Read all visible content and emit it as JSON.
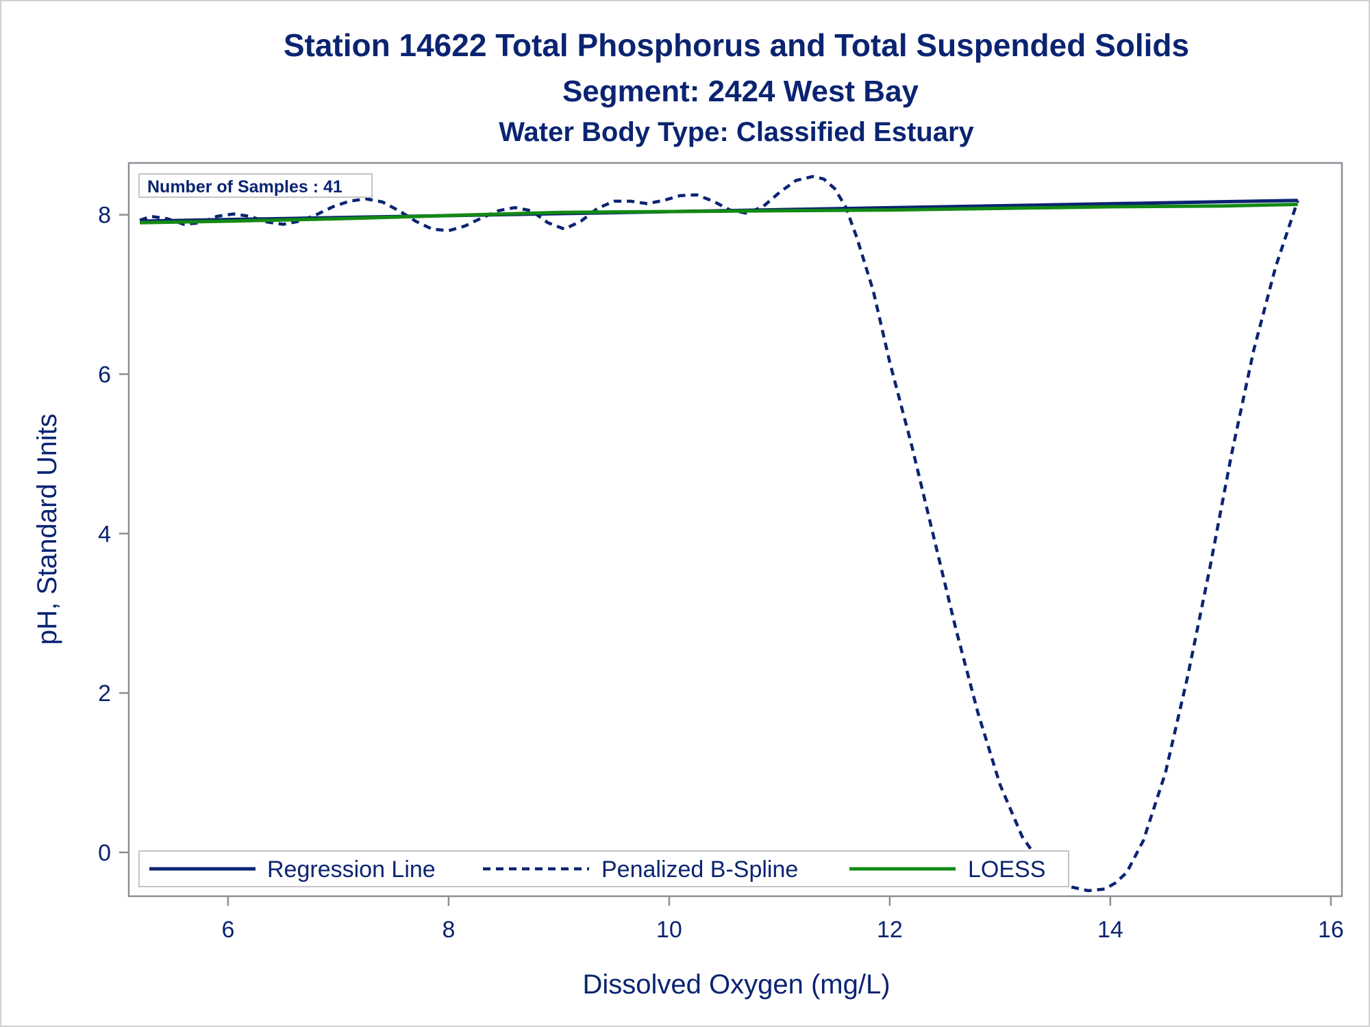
{
  "chart_data": {
    "type": "line",
    "title": "Station 14622  Total Phosphorus and Total Suspended Solids",
    "subtitle": "Segment: 2424  West Bay",
    "subtitle2": "Water Body Type: Classified Estuary",
    "annotation": "Number of Samples : 41",
    "xlabel": "Dissolved Oxygen (mg/L)",
    "ylabel": "pH, Standard Units",
    "xlim": [
      5.1,
      16.1
    ],
    "ylim": [
      -0.55,
      8.65
    ],
    "x_ticks": [
      6,
      8,
      10,
      12,
      14,
      16
    ],
    "y_ticks": [
      0,
      2,
      4,
      6,
      8
    ],
    "grid": false,
    "legend_position": "bottom-inside",
    "series": [
      {
        "name": "Regression Line",
        "style": "solid",
        "color": "#0b2471",
        "x": [
          5.2,
          15.7
        ],
        "y": [
          7.92,
          8.18
        ]
      },
      {
        "name": "Penalized B-Spline",
        "style": "dashed",
        "color": "#0b2471",
        "x": [
          5.2,
          5.3,
          5.45,
          5.6,
          5.75,
          5.9,
          6.05,
          6.2,
          6.35,
          6.5,
          6.65,
          6.8,
          6.95,
          7.1,
          7.25,
          7.4,
          7.55,
          7.7,
          7.85,
          8.0,
          8.15,
          8.3,
          8.45,
          8.6,
          8.75,
          8.9,
          9.05,
          9.2,
          9.35,
          9.5,
          9.65,
          9.8,
          9.95,
          10.1,
          10.25,
          10.4,
          10.55,
          10.7,
          10.85,
          11.0,
          11.15,
          11.3,
          11.4,
          11.5,
          11.6,
          11.7,
          11.85,
          12.0,
          12.2,
          12.4,
          12.6,
          12.8,
          13.0,
          13.2,
          13.4,
          13.6,
          13.8,
          13.95,
          14.05,
          14.15,
          14.3,
          14.5,
          14.7,
          14.9,
          15.1,
          15.3,
          15.5,
          15.7
        ],
        "y": [
          7.93,
          7.98,
          7.95,
          7.88,
          7.9,
          7.98,
          8.01,
          7.98,
          7.91,
          7.88,
          7.92,
          8.0,
          8.1,
          8.17,
          8.2,
          8.16,
          8.05,
          7.92,
          7.82,
          7.8,
          7.86,
          7.96,
          8.05,
          8.09,
          8.05,
          7.9,
          7.82,
          7.92,
          8.08,
          8.17,
          8.17,
          8.14,
          8.18,
          8.24,
          8.25,
          8.17,
          8.06,
          8.02,
          8.1,
          8.28,
          8.43,
          8.48,
          8.45,
          8.33,
          8.1,
          7.72,
          7.05,
          6.15,
          5.1,
          3.95,
          2.8,
          1.75,
          0.85,
          0.2,
          -0.2,
          -0.42,
          -0.48,
          -0.46,
          -0.38,
          -0.25,
          0.15,
          1.0,
          2.2,
          3.55,
          5.0,
          6.3,
          7.35,
          8.18
        ]
      },
      {
        "name": "LOESS",
        "style": "solid",
        "color": "#138a13",
        "x": [
          5.2,
          6.0,
          7.0,
          8.0,
          9.0,
          10.0,
          11.0,
          12.0,
          13.0,
          14.0,
          15.0,
          15.7
        ],
        "y": [
          7.9,
          7.92,
          7.95,
          7.99,
          8.03,
          8.04,
          8.05,
          8.06,
          8.08,
          8.1,
          8.11,
          8.13
        ]
      }
    ]
  }
}
